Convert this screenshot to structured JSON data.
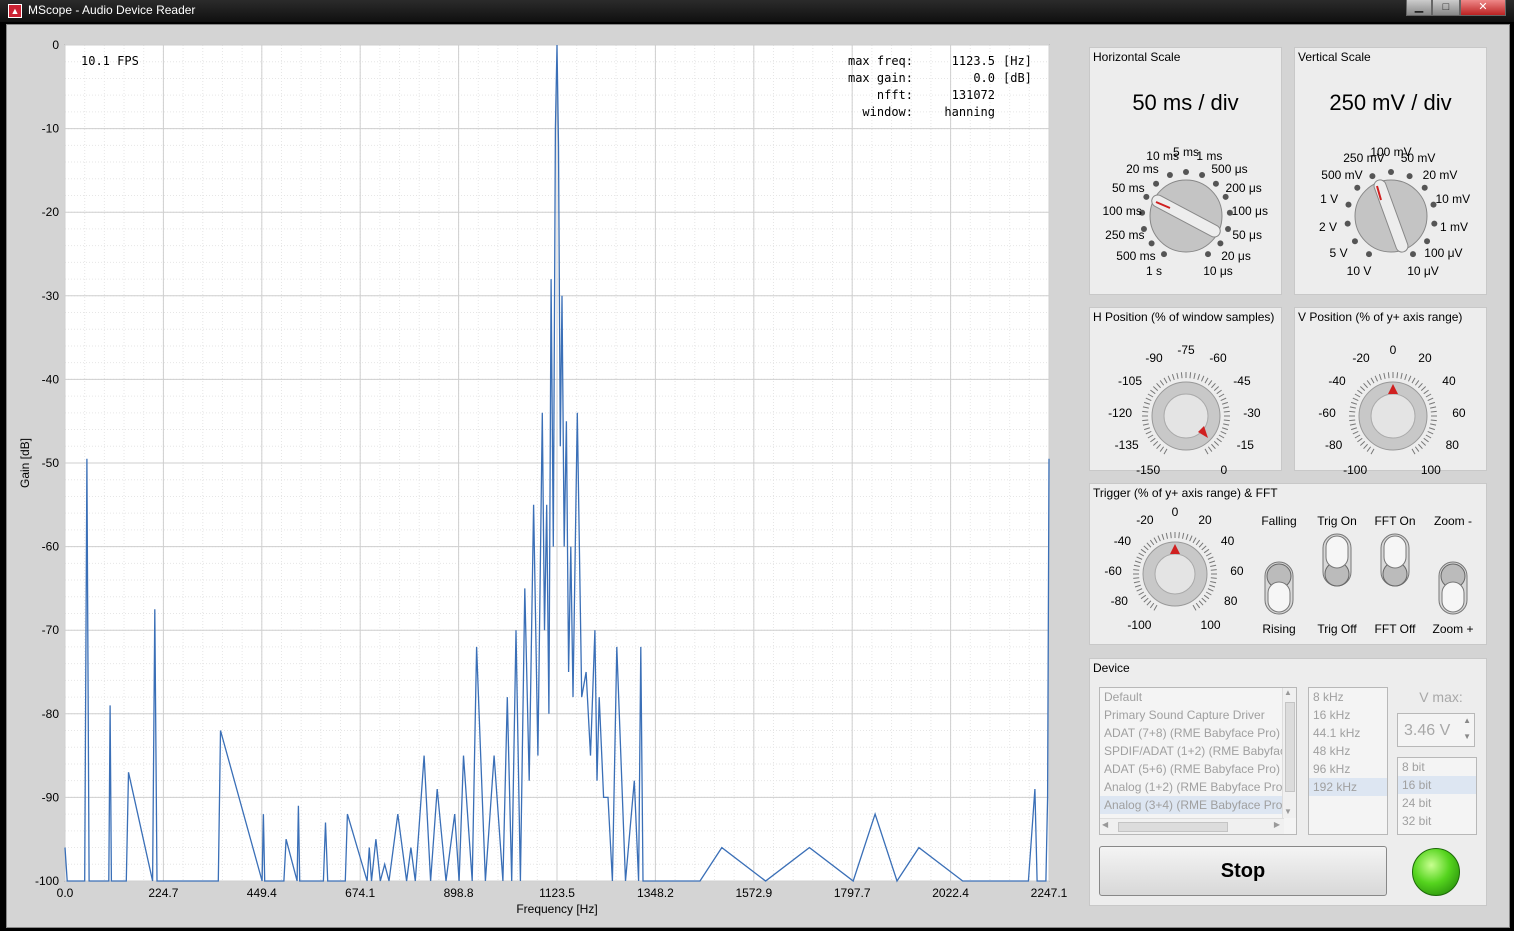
{
  "window": {
    "title": "MScope - Audio Device Reader",
    "minimize": "▁",
    "maximize": "□",
    "close": "✕"
  },
  "plot": {
    "fps": "10.1 FPS",
    "readout": [
      {
        "label": "max freq:",
        "value": "1123.5",
        "unit": "[Hz]"
      },
      {
        "label": "max gain:",
        "value": "0.0",
        "unit": "[dB]"
      },
      {
        "label": "nfft:",
        "value": "131072",
        "unit": ""
      },
      {
        "label": "window:",
        "value": "hanning",
        "unit": ""
      }
    ],
    "ylabel": "Gain [dB]",
    "xlabel": "Frequency [Hz]",
    "yticks": [
      "0",
      "-10",
      "-20",
      "-30",
      "-40",
      "-50",
      "-60",
      "-70",
      "-80",
      "-90",
      "-100"
    ],
    "xticks": [
      "0.0",
      "224.7",
      "449.4",
      "674.1",
      "898.8",
      "1123.5",
      "1348.2",
      "1572.9",
      "1797.7",
      "2022.4",
      "2247.1"
    ],
    "line_color": "#3a6fb7"
  },
  "chart_data": {
    "type": "line",
    "xlim": [
      0,
      2247.1
    ],
    "ylim": [
      -100,
      0
    ],
    "grid": true,
    "x": [
      0,
      5,
      45,
      50,
      55,
      100,
      103,
      106,
      140,
      145,
      200,
      205,
      210,
      350,
      355,
      450,
      453,
      456,
      500,
      505,
      530,
      533,
      536,
      590,
      595,
      600,
      640,
      645,
      690,
      695,
      700,
      710,
      720,
      730,
      740,
      760,
      780,
      790,
      800,
      820,
      835,
      850,
      870,
      890,
      900,
      910,
      930,
      940,
      960,
      980,
      1000,
      1010,
      1020,
      1030,
      1040,
      1050,
      1060,
      1070,
      1080,
      1090,
      1095,
      1100,
      1105,
      1110,
      1115,
      1120,
      1123.5,
      1127,
      1131,
      1135,
      1140,
      1145,
      1150,
      1155,
      1160,
      1170,
      1180,
      1190,
      1200,
      1210,
      1215,
      1220,
      1230,
      1240,
      1250,
      1260,
      1280,
      1300,
      1310,
      1315,
      1320,
      1340,
      1400,
      1450,
      1500,
      1600,
      1700,
      1800,
      1850,
      1900,
      1950,
      2050,
      2100,
      2150,
      2200,
      2215,
      2220,
      2240,
      2244,
      2247.1
    ],
    "y": [
      -96,
      -100,
      -100,
      -49.5,
      -100,
      -100,
      -79,
      -100,
      -100,
      -87,
      -100,
      -67.5,
      -100,
      -100,
      -82,
      -100,
      -92,
      -100,
      -100,
      -95,
      -100,
      -91,
      -100,
      -100,
      -93,
      -100,
      -100,
      -92,
      -100,
      -96,
      -100,
      -95,
      -100,
      -98,
      -100,
      -92,
      -100,
      -96,
      -100,
      -85,
      -100,
      -89,
      -100,
      -92,
      -100,
      -85,
      -100,
      -72,
      -100,
      -85,
      -100,
      -78,
      -100,
      -70,
      -100,
      -65,
      -88,
      -55,
      -85,
      -44,
      -70,
      -55,
      -80,
      -28,
      -60,
      -10,
      0,
      -12,
      -48,
      -30,
      -60,
      -45,
      -75,
      -60,
      -78,
      -44,
      -78,
      -75,
      -85,
      -70,
      -88,
      -78,
      -90,
      -90,
      -100,
      -72,
      -100,
      -88,
      -100,
      -72,
      -100,
      -100,
      -100,
      -100,
      -96,
      -100,
      -96,
      -100,
      -92,
      -100,
      -96,
      -100,
      -100,
      -100,
      -100,
      -89,
      -100,
      -100,
      -90,
      -49.5
    ]
  },
  "hscale": {
    "title": "Horizontal Scale",
    "value": "50 ms / div",
    "labels": [
      "1 s",
      "500 ms",
      "250 ms",
      "100 ms",
      "50 ms",
      "20 ms",
      "10 ms",
      "5 ms",
      "1 ms",
      "500 μs",
      "200 μs",
      "100 μs",
      "50 μs",
      "20 μs",
      "10 μs"
    ]
  },
  "vscale": {
    "title": "Vertical Scale",
    "value": "250 mV / div",
    "labels": [
      "10 V",
      "5 V",
      "2 V",
      "1 V",
      "500 mV",
      "250 mV",
      "100 mV",
      "50 mV",
      "20 mV",
      "10 mV",
      "1 mV",
      "100 μV",
      "10 μV"
    ]
  },
  "hpos": {
    "title": "H Position (% of window samples)",
    "labels": [
      "-150",
      "-135",
      "-120",
      "-105",
      "-90",
      "-75",
      "-60",
      "-45",
      "-30",
      "-15",
      "0"
    ]
  },
  "vpos": {
    "title": "V Position (% of y+ axis range)",
    "labels": [
      "-100",
      "-80",
      "-60",
      "-40",
      "-20",
      "0",
      "20",
      "40",
      "60",
      "80",
      "100"
    ]
  },
  "trigger": {
    "title": "Trigger (% of y+ axis range) & FFT",
    "labels": [
      "-100",
      "-80",
      "-60",
      "-40",
      "-20",
      "0",
      "20",
      "40",
      "60",
      "80",
      "100"
    ],
    "edge": {
      "top": "Falling",
      "bottom": "Rising"
    },
    "trig": {
      "top": "Trig On",
      "bottom": "Trig Off"
    },
    "fft": {
      "top": "FFT On",
      "bottom": "FFT Off"
    },
    "zoom": {
      "top": "Zoom -",
      "bottom": "Zoom +"
    }
  },
  "device": {
    "title": "Device",
    "devices": [
      "Default",
      "Primary Sound Capture Driver",
      "ADAT (7+8) (RME Babyface Pro)",
      "SPDIF/ADAT (1+2) (RME Babyface Pro)",
      "ADAT (5+6) (RME Babyface Pro)",
      "Analog (1+2) (RME Babyface Pro)",
      "Analog (3+4) (RME Babyface Pro)"
    ],
    "rates": [
      "8 kHz",
      "16 kHz",
      "44.1 kHz",
      "48 kHz",
      "96 kHz",
      "192 kHz"
    ],
    "vmax_label": "V max:",
    "vmax_value": "3.46 V",
    "bits": [
      "8 bit",
      "16 bit",
      "24 bit",
      "32 bit"
    ],
    "stop": "Stop",
    "led_color": "#55d41e"
  }
}
